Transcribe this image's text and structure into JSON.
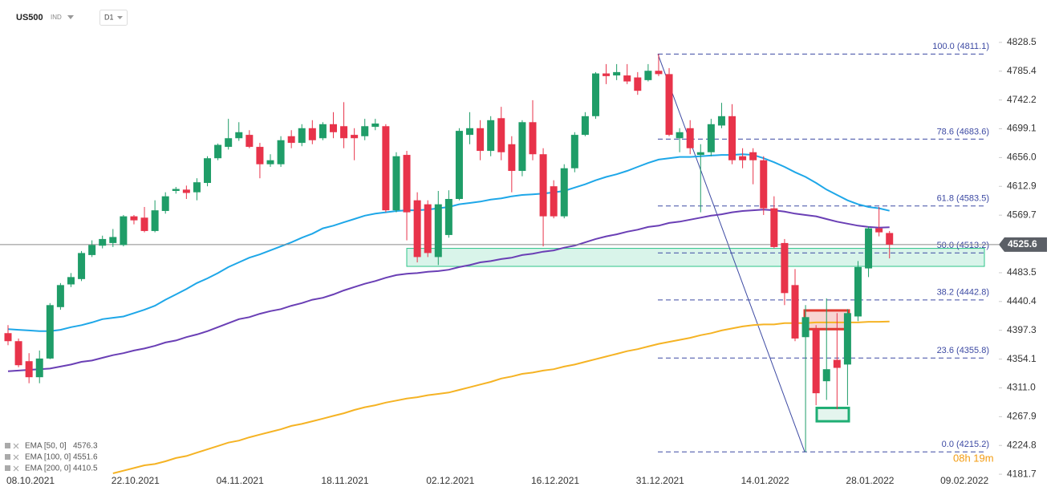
{
  "header": {
    "symbol": "US500",
    "market": "IND",
    "interval": "D1"
  },
  "chart_data": {
    "type": "candlestick",
    "categories": [
      "08.10.2021",
      null,
      null,
      null,
      null,
      null,
      null,
      null,
      null,
      null,
      "22.10.2021",
      null,
      null,
      null,
      null,
      null,
      null,
      null,
      null,
      null,
      "04.11.2021",
      null,
      null,
      null,
      null,
      null,
      null,
      null,
      null,
      null,
      "18.11.2021",
      null,
      null,
      null,
      null,
      null,
      null,
      null,
      null,
      null,
      "02.12.2021",
      null,
      null,
      null,
      null,
      null,
      null,
      null,
      null,
      null,
      "16.12.2021",
      null,
      null,
      null,
      null,
      null,
      null,
      null,
      null,
      null,
      "31.12.2021",
      null,
      null,
      null,
      null,
      null,
      null,
      null,
      null,
      null,
      "14.01.2022",
      null,
      null,
      null,
      null,
      null,
      null,
      null,
      null,
      null,
      "28.01.2022",
      null,
      null,
      null,
      null,
      null,
      null,
      null,
      null,
      "09.02.2022"
    ],
    "open": [
      4393,
      4381,
      4351,
      4327,
      4355,
      4432,
      4466,
      4474,
      4510,
      4524,
      4528,
      4525,
      4568,
      4566,
      4546,
      4576,
      4606,
      4608,
      4604,
      4618,
      4655,
      4672,
      4685,
      4690,
      4672,
      4646,
      4646,
      4688,
      4678,
      4700,
      4685,
      4706,
      4703,
      4690,
      4688,
      4702,
      4703,
      4577,
      4660,
      4592,
      4586,
      4507,
      4540,
      4594,
      4690,
      4700,
      4666,
      4715,
      4676,
      4636,
      4709,
      4661,
      4613,
      4568,
      4640,
      4690,
      4718,
      4782,
      4779,
      4779,
      4776,
      4772,
      4786,
      4781,
      4685,
      4700,
      4660,
      4664,
      4704,
      4718,
      4658,
      4664,
      4652,
      4580,
      4528,
      4465,
      4387,
      4399,
      4321,
      4353,
      4346,
      4418,
      4490,
      4550,
      4543,
      null,
      null,
      null,
      null,
      null
    ],
    "high": [
      4405,
      4385,
      4363,
      4367,
      4438,
      4468,
      4483,
      4516,
      4532,
      4539,
      4549,
      4570,
      4570,
      4582,
      4592,
      4604,
      4612,
      4614,
      4625,
      4658,
      4677,
      4714,
      4709,
      4697,
      4678,
      4661,
      4688,
      4697,
      4706,
      4712,
      4709,
      4724,
      4739,
      4700,
      4714,
      4714,
      4706,
      4664,
      4666,
      4604,
      4592,
      4606,
      4607,
      4700,
      4724,
      4712,
      4718,
      4732,
      4688,
      4712,
      4742,
      4670,
      4622,
      4646,
      4694,
      4724,
      4784,
      4796,
      4796,
      4796,
      4784,
      4796,
      4811.1,
      4790,
      4700,
      4712,
      4676,
      4714,
      4738,
      4736,
      4670,
      4670,
      4658,
      4598,
      4534,
      4489,
      4435,
      4405,
      4445,
      4423,
      4429,
      4501,
      4553,
      4582,
      4546,
      null,
      null,
      null,
      null,
      null
    ],
    "low": [
      4375,
      4342,
      4318,
      4318,
      4354,
      4428,
      4462,
      4471,
      4507,
      4520,
      4522,
      4523,
      4556,
      4544,
      4544,
      4572,
      4602,
      4594,
      4592,
      4613,
      4652,
      4668,
      4681,
      4670,
      4625,
      4642,
      4642,
      4670,
      4673,
      4676,
      4682,
      4685,
      4670,
      4652,
      4682,
      4697,
      4574,
      4574,
      4532,
      4499,
      4507,
      4495,
      4536,
      4592,
      4676,
      4652,
      4658,
      4652,
      4604,
      4628,
      4652,
      4523,
      4565,
      4565,
      4634,
      4688,
      4714,
      4766,
      4772,
      4766,
      4750,
      4770,
      4778,
      4688,
      4664,
      4661,
      4574,
      4658,
      4700,
      4646,
      4640,
      4616,
      4570,
      4520,
      4435,
      4381,
      4215.2,
      4285,
      4293,
      4279,
      4285,
      4411,
      4477,
      4538,
      4505,
      null,
      null,
      null,
      null,
      null
    ],
    "close": [
      4381,
      4345,
      4327,
      4355,
      4435,
      4465,
      4477,
      4513,
      4525,
      4534,
      4537,
      4568,
      4562,
      4546,
      4577,
      4598,
      4609,
      4603,
      4619,
      4655,
      4675,
      4685,
      4694,
      4672,
      4646,
      4652,
      4682,
      4678,
      4700,
      4682,
      4706,
      4694,
      4685,
      4685,
      4703,
      4707,
      4577,
      4658,
      4574,
      4507,
      4513,
      4586,
      4594,
      4696,
      4700,
      4666,
      4712,
      4664,
      4636,
      4709,
      4661,
      4568,
      4568,
      4640,
      4690,
      4718,
      4782,
      4778,
      4784,
      4770,
      4756,
      4786,
      4781,
      4690,
      4694,
      4670,
      4664,
      4706,
      4718,
      4652,
      4652,
      4652,
      4580,
      4522,
      4453,
      4385,
      4417,
      4303,
      4339,
      4341,
      4423,
      4492,
      4550,
      4544,
      4525.6,
      null,
      null,
      null,
      null,
      null
    ],
    "up_color": "#1f9d68",
    "down_color": "#e8334a",
    "series": [
      {
        "name": "EMA [50, 0]",
        "color": "#1ea7e8",
        "values": [
          4399,
          4398,
          4397,
          4396,
          4396,
          4398,
          4402,
          4405,
          4409,
          4414,
          4416,
          4418,
          4423,
          4428,
          4434,
          4443,
          4451,
          4459,
          4468,
          4475,
          4483,
          4492,
          4499,
          4506,
          4511,
          4517,
          4523,
          4529,
          4536,
          4542,
          4550,
          4554,
          4559,
          4564,
          4569,
          4572,
          4574,
          4576,
          4577,
          4577,
          4578,
          4580,
          4582,
          4586,
          4588,
          4590,
          4593,
          4595,
          4598,
          4600,
          4601,
          4602,
          4604,
          4606,
          4611,
          4616,
          4622,
          4627,
          4631,
          4636,
          4642,
          4648,
          4653,
          4655,
          4657,
          4657,
          4658,
          4659,
          4660,
          4660,
          4661,
          4660,
          4655,
          4649,
          4642,
          4634,
          4627,
          4618,
          4608,
          4600,
          4592,
          4586,
          4582,
          4580,
          4576.3,
          null,
          null,
          null,
          null,
          null
        ]
      },
      {
        "name": "EMA [100, 0]",
        "color": "#6a3fb5",
        "values": [
          4336,
          4337,
          4338,
          4339,
          4340,
          4343,
          4346,
          4350,
          4352,
          4356,
          4360,
          4363,
          4367,
          4370,
          4374,
          4379,
          4382,
          4387,
          4391,
          4396,
          4402,
          4408,
          4414,
          4417,
          4422,
          4426,
          4429,
          4434,
          4438,
          4443,
          4446,
          4451,
          4457,
          4462,
          4467,
          4471,
          4476,
          4480,
          4482,
          4483,
          4485,
          4486,
          4488,
          4492,
          4495,
          4499,
          4501,
          4504,
          4506,
          4510,
          4512,
          4515,
          4517,
          4521,
          4524,
          4529,
          4534,
          4538,
          4541,
          4545,
          4548,
          4552,
          4554,
          4558,
          4560,
          4563,
          4566,
          4569,
          4571,
          4574,
          4576,
          4577,
          4578,
          4577,
          4575,
          4572,
          4570,
          4568,
          4564,
          4560,
          4557,
          4554,
          4552,
          4551,
          4551.6,
          null,
          null,
          null,
          null,
          null
        ]
      },
      {
        "name": "EMA [200, 0]",
        "color": "#f5b324",
        "values": [
          null,
          null,
          null,
          null,
          null,
          null,
          null,
          null,
          null,
          null,
          4183,
          4187,
          4191,
          4195,
          4197,
          4201,
          4206,
          4209,
          4214,
          4219,
          4224,
          4229,
          4232,
          4237,
          4241,
          4245,
          4249,
          4254,
          4257,
          4261,
          4265,
          4269,
          4273,
          4278,
          4282,
          4285,
          4289,
          4292,
          4295,
          4297,
          4300,
          4302,
          4304,
          4308,
          4312,
          4316,
          4320,
          4325,
          4328,
          4332,
          4334,
          4337,
          4339,
          4343,
          4346,
          4350,
          4354,
          4358,
          4362,
          4366,
          4369,
          4373,
          4377,
          4380,
          4383,
          4386,
          4390,
          4393,
          4397,
          4400,
          4403,
          4405,
          4406,
          4406,
          4408,
          4408,
          4408,
          4409,
          4409,
          4409,
          4409,
          4409,
          4410,
          4410,
          4410.5,
          null,
          null,
          null,
          null,
          null
        ]
      }
    ],
    "ylim": [
      4171,
      4892
    ],
    "yticks": [
      4828.5,
      4785.4,
      4742.2,
      4699.1,
      {
        "value": 4656.0,
        "label": "4656.0"
      },
      4612.9,
      4569.7,
      4483.5,
      4440.4,
      4397.3,
      4354.1,
      {
        "value": 4311.0,
        "label": "4311.0"
      },
      4267.9,
      4224.8,
      4181.7
    ],
    "fib_levels": [
      {
        "value": 4811.1,
        "label": "100.0 (4811.1)"
      },
      {
        "value": 4683.6,
        "label": "78.6 (4683.6)"
      },
      {
        "value": 4583.5,
        "label": "61.8 (4583.5)"
      },
      {
        "value": 4513.2,
        "label": "50.0 (4513.2)"
      },
      {
        "value": 4442.8,
        "label": "38.2 (4442.8)"
      },
      {
        "value": 4355.8,
        "label": "23.6 (4355.8)"
      },
      {
        "value": 4215.2,
        "label": "0.0 (4215.2)"
      }
    ],
    "fib_color": "#3d4aa3",
    "zones": [
      {
        "low": 4493,
        "high": 4520,
        "color": "#2fc48a"
      },
      {
        "low": 4399,
        "high": 4427,
        "color": "#e03a30"
      },
      {
        "low": 4261,
        "high": 4281,
        "color": "#1fae74"
      }
    ],
    "countdown": "08h 19m"
  }
}
